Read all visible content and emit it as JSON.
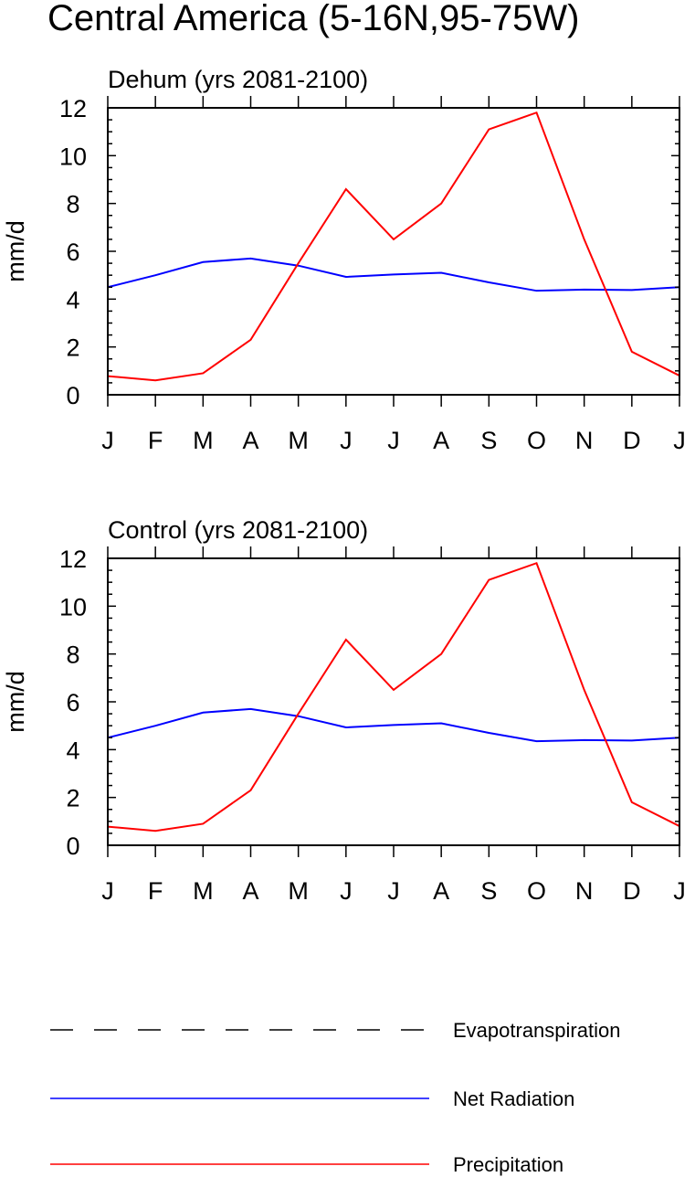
{
  "figure": {
    "title": "Central America (5-16N,95-75W)"
  },
  "colors": {
    "net_radiation": "#0000ff",
    "precipitation": "#ff0000",
    "evapotranspiration": "#000000",
    "axis": "#000000"
  },
  "legend": {
    "items": [
      {
        "name": "Evapotranspiration",
        "style": "dashed",
        "color": "#000000"
      },
      {
        "name": "Net Radiation",
        "style": "solid",
        "color": "#0000ff"
      },
      {
        "name": "Precipitation",
        "style": "solid",
        "color": "#ff0000"
      }
    ]
  },
  "chart_data": [
    {
      "type": "line",
      "title": "Dehum (yrs 2081-2100)",
      "ylabel": "mm/d",
      "xlabel": "",
      "categories": [
        "J",
        "F",
        "M",
        "A",
        "M",
        "J",
        "J",
        "A",
        "S",
        "O",
        "N",
        "D",
        "J"
      ],
      "ylim": [
        0,
        12
      ],
      "yticks": [
        0,
        2,
        4,
        6,
        8,
        10,
        12
      ],
      "grid": false,
      "series": [
        {
          "name": "Net Radiation",
          "color": "#0000ff",
          "values": [
            4.5,
            5.0,
            5.55,
            5.7,
            5.4,
            4.93,
            5.03,
            5.1,
            4.7,
            4.35,
            4.4,
            4.38,
            4.5
          ]
        },
        {
          "name": "Precipitation",
          "color": "#ff0000",
          "values": [
            0.78,
            0.6,
            0.9,
            2.3,
            5.5,
            8.6,
            6.5,
            8.0,
            11.1,
            11.8,
            6.5,
            1.8,
            0.8
          ]
        }
      ]
    },
    {
      "type": "line",
      "title": "Control (yrs 2081-2100)",
      "ylabel": "mm/d",
      "xlabel": "",
      "categories": [
        "J",
        "F",
        "M",
        "A",
        "M",
        "J",
        "J",
        "A",
        "S",
        "O",
        "N",
        "D",
        "J"
      ],
      "ylim": [
        0,
        12
      ],
      "yticks": [
        0,
        2,
        4,
        6,
        8,
        10,
        12
      ],
      "grid": false,
      "series": [
        {
          "name": "Net Radiation",
          "color": "#0000ff",
          "values": [
            4.5,
            5.0,
            5.55,
            5.7,
            5.4,
            4.93,
            5.03,
            5.1,
            4.7,
            4.35,
            4.4,
            4.38,
            4.5
          ]
        },
        {
          "name": "Precipitation",
          "color": "#ff0000",
          "values": [
            0.78,
            0.6,
            0.9,
            2.3,
            5.5,
            8.6,
            6.5,
            8.0,
            11.1,
            11.8,
            6.5,
            1.8,
            0.8
          ]
        }
      ]
    }
  ]
}
